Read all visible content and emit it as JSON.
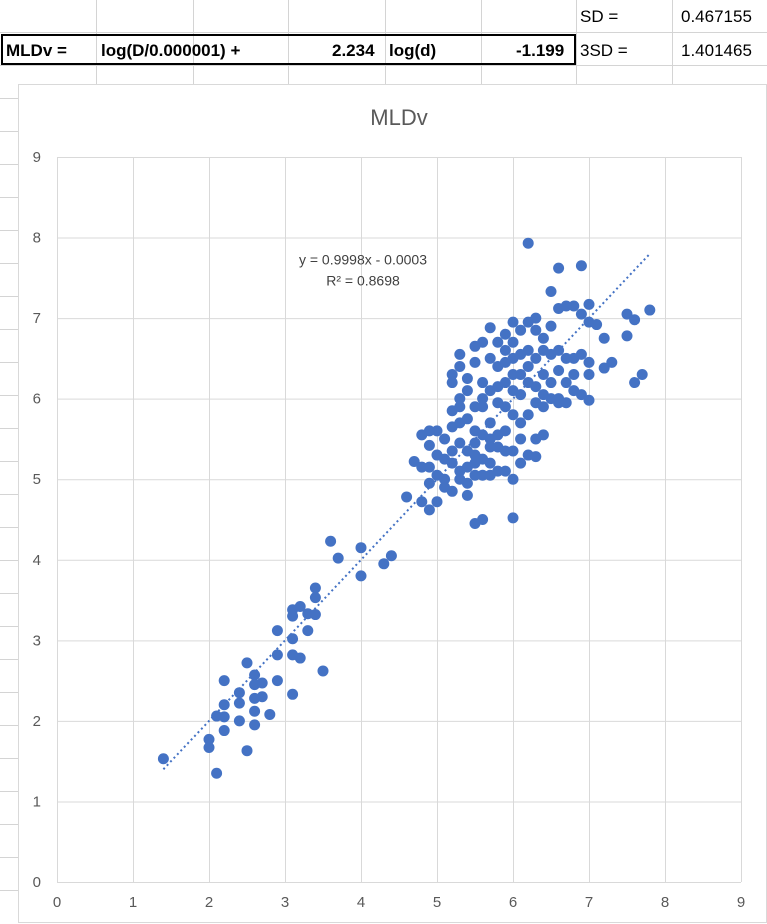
{
  "spreadsheet": {
    "row1": {
      "sd_label": "SD =",
      "sd_value": "0.467155"
    },
    "row2": {
      "a": "MLDv =",
      "b": "log(D/0.000001) +",
      "c": "2.234",
      "d": "log(d)",
      "e": "-1.199",
      "f": "3SD =",
      "g": "1.401465"
    }
  },
  "chart_data": {
    "type": "scatter",
    "title": "MLDv",
    "xlabel": "",
    "ylabel": "",
    "xlim": [
      0,
      9
    ],
    "ylim": [
      0,
      9
    ],
    "xticks": [
      "0",
      "1",
      "2",
      "3",
      "4",
      "5",
      "6",
      "7",
      "8",
      "9"
    ],
    "yticks": [
      "0",
      "1",
      "2",
      "3",
      "4",
      "5",
      "6",
      "7",
      "8",
      "9"
    ],
    "grid": true,
    "marker_color": "#4472C4",
    "trendline": {
      "slope": 0.9998,
      "intercept": -0.0003,
      "x_range": [
        1.4,
        7.8
      ],
      "style": "dotted",
      "equation_text": "y = 0.9998x - 0.0003",
      "r2_text": "R² = 0.8698"
    },
    "points": [
      [
        1.4,
        1.53
      ],
      [
        2.0,
        1.77
      ],
      [
        2.0,
        1.67
      ],
      [
        2.1,
        1.35
      ],
      [
        2.1,
        2.06
      ],
      [
        2.2,
        1.88
      ],
      [
        2.2,
        2.05
      ],
      [
        2.2,
        2.2
      ],
      [
        2.2,
        2.5
      ],
      [
        2.4,
        2.0
      ],
      [
        2.4,
        2.35
      ],
      [
        2.4,
        2.22
      ],
      [
        2.5,
        2.72
      ],
      [
        2.5,
        1.63
      ],
      [
        2.6,
        1.95
      ],
      [
        2.6,
        2.12
      ],
      [
        2.6,
        2.28
      ],
      [
        2.6,
        2.45
      ],
      [
        2.6,
        2.57
      ],
      [
        2.7,
        2.3
      ],
      [
        2.7,
        2.47
      ],
      [
        2.8,
        2.08
      ],
      [
        2.9,
        2.5
      ],
      [
        2.9,
        2.82
      ],
      [
        2.9,
        3.12
      ],
      [
        3.1,
        2.33
      ],
      [
        3.1,
        2.82
      ],
      [
        3.1,
        3.02
      ],
      [
        3.1,
        3.3
      ],
      [
        3.1,
        3.38
      ],
      [
        3.2,
        3.42
      ],
      [
        3.2,
        2.78
      ],
      [
        3.3,
        3.12
      ],
      [
        3.3,
        3.33
      ],
      [
        3.4,
        3.65
      ],
      [
        3.4,
        3.53
      ],
      [
        3.4,
        3.32
      ],
      [
        3.5,
        2.62
      ],
      [
        3.6,
        4.23
      ],
      [
        3.7,
        4.02
      ],
      [
        4.0,
        4.15
      ],
      [
        4.0,
        3.8
      ],
      [
        4.3,
        3.95
      ],
      [
        4.4,
        4.05
      ],
      [
        4.6,
        4.78
      ],
      [
        4.7,
        5.22
      ],
      [
        4.8,
        5.15
      ],
      [
        4.8,
        5.55
      ],
      [
        4.8,
        4.72
      ],
      [
        4.9,
        4.62
      ],
      [
        4.9,
        4.95
      ],
      [
        4.9,
        5.42
      ],
      [
        4.9,
        5.6
      ],
      [
        5.0,
        4.72
      ],
      [
        5.0,
        5.05
      ],
      [
        5.0,
        5.3
      ],
      [
        5.1,
        4.9
      ],
      [
        5.1,
        5.5
      ],
      [
        5.2,
        4.85
      ],
      [
        5.2,
        5.2
      ],
      [
        5.2,
        5.65
      ],
      [
        5.2,
        5.85
      ],
      [
        5.2,
        6.2
      ],
      [
        5.3,
        5.1
      ],
      [
        5.3,
        5.45
      ],
      [
        5.3,
        6.0
      ],
      [
        5.3,
        6.55
      ],
      [
        5.4,
        4.95
      ],
      [
        5.4,
        5.75
      ],
      [
        5.4,
        6.25
      ],
      [
        5.5,
        4.45
      ],
      [
        5.5,
        5.3
      ],
      [
        5.5,
        5.6
      ],
      [
        5.5,
        6.45
      ],
      [
        5.6,
        4.5
      ],
      [
        5.6,
        5.05
      ],
      [
        5.6,
        5.9
      ],
      [
        5.6,
        6.7
      ],
      [
        5.7,
        5.2
      ],
      [
        5.7,
        5.5
      ],
      [
        5.7,
        6.1
      ],
      [
        5.7,
        6.88
      ],
      [
        5.8,
        5.4
      ],
      [
        5.8,
        5.95
      ],
      [
        5.8,
        6.4
      ],
      [
        5.9,
        5.6
      ],
      [
        5.9,
        6.2
      ],
      [
        5.9,
        6.6
      ],
      [
        6.0,
        4.52
      ],
      [
        6.0,
        5.0
      ],
      [
        6.0,
        5.35
      ],
      [
        6.0,
        5.8
      ],
      [
        6.0,
        6.3
      ],
      [
        6.0,
        6.95
      ],
      [
        6.1,
        5.5
      ],
      [
        6.1,
        6.05
      ],
      [
        6.1,
        6.55
      ],
      [
        6.2,
        7.93
      ],
      [
        6.2,
        5.3
      ],
      [
        6.2,
        6.2
      ],
      [
        6.2,
        6.95
      ],
      [
        6.3,
        5.28
      ],
      [
        6.3,
        5.95
      ],
      [
        6.3,
        6.5
      ],
      [
        6.4,
        5.55
      ],
      [
        6.4,
        6.05
      ],
      [
        6.4,
        6.75
      ],
      [
        6.5,
        6.55
      ],
      [
        6.5,
        7.33
      ],
      [
        6.6,
        5.95
      ],
      [
        6.6,
        6.35
      ],
      [
        6.6,
        7.12
      ],
      [
        6.6,
        7.62
      ],
      [
        6.7,
        6.2
      ],
      [
        6.7,
        7.15
      ],
      [
        6.8,
        6.5
      ],
      [
        6.8,
        7.15
      ],
      [
        6.9,
        6.05
      ],
      [
        6.9,
        7.05
      ],
      [
        6.9,
        7.65
      ],
      [
        7.0,
        5.98
      ],
      [
        7.0,
        6.3
      ],
      [
        7.0,
        6.95
      ],
      [
        7.0,
        7.17
      ],
      [
        7.1,
        6.92
      ],
      [
        7.2,
        6.38
      ],
      [
        7.2,
        6.75
      ],
      [
        7.3,
        6.45
      ],
      [
        7.5,
        6.78
      ],
      [
        7.5,
        7.05
      ],
      [
        7.6,
        6.2
      ],
      [
        7.6,
        6.98
      ],
      [
        7.7,
        6.3
      ],
      [
        7.8,
        7.1
      ],
      [
        5.4,
        5.15
      ],
      [
        5.5,
        5.45
      ],
      [
        5.6,
        5.25
      ],
      [
        5.7,
        5.7
      ],
      [
        5.8,
        5.1
      ],
      [
        5.9,
        5.35
      ],
      [
        5.3,
        5.7
      ],
      [
        5.4,
        6.1
      ],
      [
        5.1,
        5.0
      ],
      [
        5.0,
        5.6
      ],
      [
        5.5,
        5.9
      ],
      [
        5.6,
        6.2
      ],
      [
        5.8,
        6.7
      ],
      [
        6.1,
        6.85
      ],
      [
        6.3,
        6.85
      ],
      [
        6.5,
        6.9
      ],
      [
        6.0,
        6.5
      ],
      [
        6.2,
        6.4
      ],
      [
        5.9,
        6.45
      ],
      [
        5.7,
        6.5
      ],
      [
        5.6,
        6.0
      ],
      [
        5.2,
        5.35
      ],
      [
        5.3,
        5.9
      ],
      [
        5.1,
        5.25
      ],
      [
        4.9,
        5.15
      ],
      [
        5.8,
        5.55
      ],
      [
        6.1,
        5.7
      ],
      [
        6.4,
        6.3
      ],
      [
        6.7,
        6.5
      ],
      [
        6.8,
        6.3
      ],
      [
        6.5,
        6.2
      ],
      [
        6.2,
        5.8
      ],
      [
        5.9,
        5.9
      ],
      [
        5.4,
        5.35
      ],
      [
        5.5,
        5.2
      ],
      [
        5.6,
        5.55
      ],
      [
        5.7,
        5.4
      ],
      [
        5.8,
        6.15
      ],
      [
        6.0,
        6.1
      ],
      [
        6.1,
        6.3
      ],
      [
        6.3,
        6.15
      ],
      [
        6.6,
        6.6
      ],
      [
        6.9,
        6.55
      ],
      [
        7.0,
        6.45
      ],
      [
        6.4,
        6.6
      ],
      [
        6.3,
        7.0
      ],
      [
        5.2,
        6.3
      ],
      [
        5.3,
        6.4
      ],
      [
        5.5,
        6.65
      ],
      [
        5.9,
        6.8
      ],
      [
        6.0,
        6.7
      ],
      [
        6.2,
        6.6
      ],
      [
        6.5,
        6.0
      ],
      [
        6.7,
        5.95
      ],
      [
        6.8,
        6.1
      ],
      [
        5.4,
        4.8
      ],
      [
        5.3,
        5.0
      ],
      [
        5.5,
        5.05
      ],
      [
        5.7,
        5.05
      ],
      [
        5.9,
        5.1
      ],
      [
        6.1,
        5.2
      ],
      [
        6.3,
        5.5
      ],
      [
        6.4,
        5.9
      ],
      [
        6.6,
        6.0
      ]
    ]
  }
}
